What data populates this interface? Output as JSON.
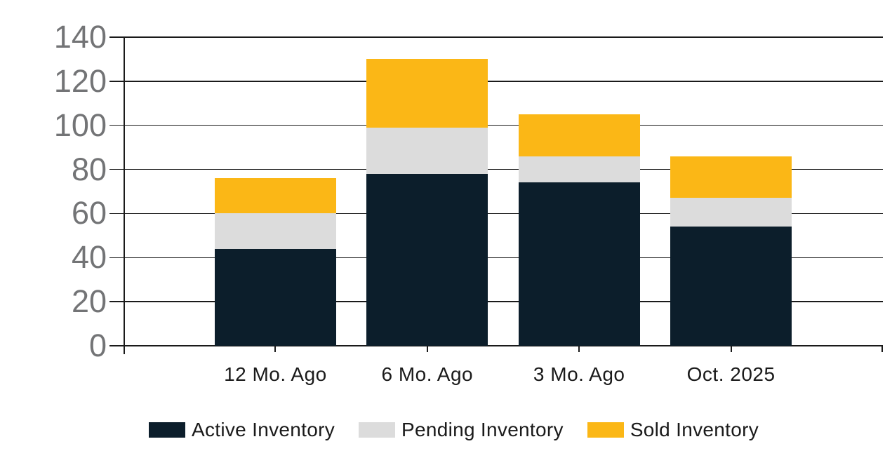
{
  "chart_data": {
    "type": "bar",
    "stacked": true,
    "categories": [
      "12 Mo. Ago",
      "6 Mo. Ago",
      "3 Mo. Ago",
      "Oct. 2025"
    ],
    "series": [
      {
        "name": "Active Inventory",
        "color": "#0c1e2b",
        "values": [
          44,
          78,
          74,
          54
        ]
      },
      {
        "name": "Pending Inventory",
        "color": "#dcdcdc",
        "values": [
          16,
          21,
          12,
          13
        ]
      },
      {
        "name": "Sold Inventory",
        "color": "#fbb716",
        "values": [
          16,
          31,
          19,
          19
        ]
      }
    ],
    "stack_totals": [
      76,
      130,
      105,
      86
    ],
    "y_axis": {
      "min": 0,
      "max": 140,
      "step": 20,
      "tick_labels": [
        "0",
        "20",
        "40",
        "60",
        "80",
        "100",
        "120",
        "140"
      ]
    },
    "x_axis": {
      "tick_labels": [
        "12 Mo. Ago",
        "6 Mo. Ago",
        "3 Mo. Ago",
        "Oct. 2025"
      ]
    },
    "grid": true,
    "legend_position": "bottom",
    "legend": [
      "Active Inventory",
      "Pending Inventory",
      "Sold Inventory"
    ]
  },
  "style": {
    "background": "#ffffff",
    "grid_color": "#1a1a1a",
    "y_label_color": "#737476",
    "x_label_color": "#1a1a1a",
    "legend_text_color": "#1a1a1a"
  }
}
